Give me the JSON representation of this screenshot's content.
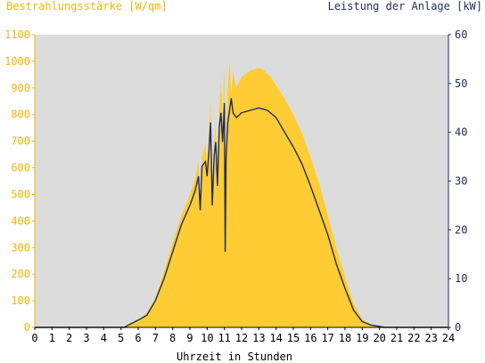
{
  "colors": {
    "background": "#ffffff",
    "plot_background": "#dcdcdc",
    "irradiance_fill": "#ffcc33",
    "irradiance_axis": "#f5b400",
    "power_line": "#1f2d5a",
    "power_axis": "#1f2d5a",
    "text": "#000000"
  },
  "chart_data": {
    "type": "area",
    "left_axis_title": "Bestrahlungsstärke [W/qm]",
    "right_axis_title": "Leistung der Anlage [kW]",
    "xlabel": "Uhrzeit in Stunden",
    "xlim": [
      0,
      24
    ],
    "x_ticks": [
      "0",
      "1",
      "2",
      "3",
      "4",
      "5",
      "6",
      "7",
      "8",
      "9",
      "10",
      "11",
      "12",
      "13",
      "14",
      "15",
      "16",
      "17",
      "18",
      "19",
      "20",
      "21",
      "22",
      "23",
      "24"
    ],
    "left_ylim": [
      0,
      1100
    ],
    "left_ticks": [
      "0",
      "100",
      "200",
      "300",
      "400",
      "500",
      "600",
      "700",
      "800",
      "900",
      "1000",
      "1100"
    ],
    "right_ylim": [
      0,
      60
    ],
    "right_ticks": [
      "0",
      "10",
      "20",
      "30",
      "40",
      "50",
      "60"
    ],
    "grid": false,
    "series": [
      {
        "name": "Bestrahlungsstärke [W/qm]",
        "style": "area",
        "axis": "left",
        "points": [
          [
            0,
            0
          ],
          [
            5,
            0
          ],
          [
            5.2,
            5
          ],
          [
            5.5,
            15
          ],
          [
            6,
            30
          ],
          [
            6.5,
            55
          ],
          [
            7,
            110
          ],
          [
            7.5,
            210
          ],
          [
            8,
            320
          ],
          [
            8.5,
            420
          ],
          [
            9,
            500
          ],
          [
            9.3,
            560
          ],
          [
            9.5,
            620
          ],
          [
            9.6,
            450
          ],
          [
            9.7,
            640
          ],
          [
            9.9,
            690
          ],
          [
            10,
            620
          ],
          [
            10.1,
            720
          ],
          [
            10.2,
            850
          ],
          [
            10.3,
            480
          ],
          [
            10.4,
            700
          ],
          [
            10.5,
            760
          ],
          [
            10.6,
            560
          ],
          [
            10.7,
            820
          ],
          [
            10.8,
            920
          ],
          [
            10.9,
            780
          ],
          [
            11,
            1000
          ],
          [
            11.05,
            300
          ],
          [
            11.1,
            750
          ],
          [
            11.2,
            900
          ],
          [
            11.3,
            1000
          ],
          [
            11.4,
            880
          ],
          [
            11.5,
            960
          ],
          [
            11.7,
            900
          ],
          [
            12,
            940
          ],
          [
            12.5,
            965
          ],
          [
            13,
            975
          ],
          [
            13.3,
            965
          ],
          [
            13.7,
            940
          ],
          [
            14,
            910
          ],
          [
            14.5,
            860
          ],
          [
            15,
            800
          ],
          [
            15.5,
            730
          ],
          [
            16,
            640
          ],
          [
            16.5,
            540
          ],
          [
            17,
            420
          ],
          [
            17.5,
            300
          ],
          [
            18,
            190
          ],
          [
            18.5,
            90
          ],
          [
            19,
            30
          ],
          [
            19.5,
            10
          ],
          [
            20,
            3
          ],
          [
            20.3,
            0
          ],
          [
            24,
            0
          ]
        ]
      },
      {
        "name": "Leistung der Anlage [kW]",
        "style": "line",
        "axis": "right",
        "points": [
          [
            0,
            0
          ],
          [
            5.2,
            0
          ],
          [
            5.5,
            0.6
          ],
          [
            6,
            1.5
          ],
          [
            6.5,
            2.5
          ],
          [
            7,
            5.5
          ],
          [
            7.5,
            10
          ],
          [
            8,
            15.5
          ],
          [
            8.5,
            21
          ],
          [
            9,
            25
          ],
          [
            9.3,
            28
          ],
          [
            9.5,
            31
          ],
          [
            9.6,
            24
          ],
          [
            9.7,
            33
          ],
          [
            9.9,
            34
          ],
          [
            10,
            31
          ],
          [
            10.1,
            36
          ],
          [
            10.2,
            42
          ],
          [
            10.3,
            25
          ],
          [
            10.4,
            35
          ],
          [
            10.5,
            38
          ],
          [
            10.6,
            29
          ],
          [
            10.7,
            41
          ],
          [
            10.8,
            44
          ],
          [
            10.9,
            38
          ],
          [
            11,
            46
          ],
          [
            11.05,
            15.5
          ],
          [
            11.1,
            35
          ],
          [
            11.2,
            42
          ],
          [
            11.4,
            47
          ],
          [
            11.5,
            44
          ],
          [
            11.7,
            43
          ],
          [
            12,
            44
          ],
          [
            12.5,
            44.5
          ],
          [
            13,
            45
          ],
          [
            13.5,
            44.5
          ],
          [
            14,
            43
          ],
          [
            14.5,
            40
          ],
          [
            15,
            37
          ],
          [
            15.5,
            33.5
          ],
          [
            16,
            29
          ],
          [
            16.5,
            24
          ],
          [
            17,
            19
          ],
          [
            17.5,
            13
          ],
          [
            18,
            8
          ],
          [
            18.5,
            3.5
          ],
          [
            19,
            1.2
          ],
          [
            19.5,
            0.5
          ],
          [
            20,
            0.2
          ],
          [
            20.3,
            0
          ],
          [
            24,
            0
          ]
        ]
      }
    ]
  }
}
